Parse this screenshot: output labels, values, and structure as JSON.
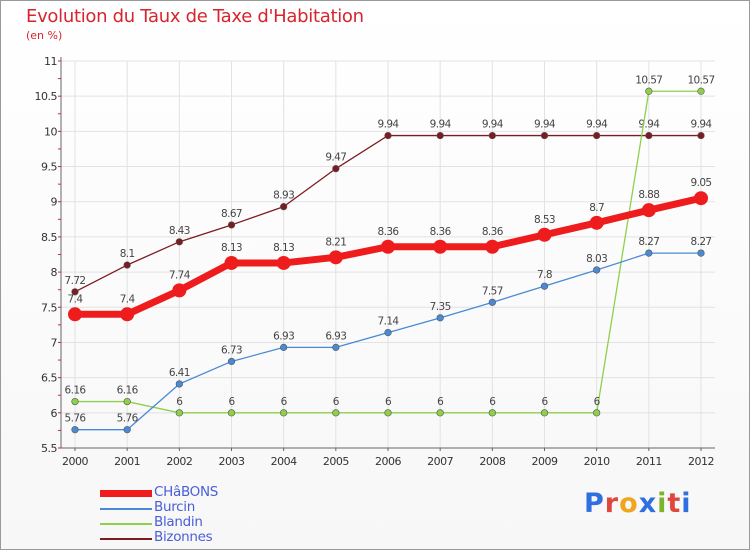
{
  "header": {
    "title": "Evolution du Taux de Taxe d'Habitation",
    "unit": "(en %)"
  },
  "brand": {
    "letters": [
      "P",
      "r",
      "o",
      "x",
      "i",
      "t",
      "i"
    ],
    "colors": [
      "#2f6fe0",
      "#e1463e",
      "#f0a51c",
      "#2f6fe0",
      "#7ab42c",
      "#e1463e",
      "#2f6fe0"
    ]
  },
  "chart_data": {
    "type": "line",
    "x": [
      "2000",
      "2001",
      "2002",
      "2003",
      "2004",
      "2005",
      "2006",
      "2007",
      "2008",
      "2009",
      "2010",
      "2011",
      "2012"
    ],
    "ylim": [
      5.5,
      11
    ],
    "yticks": [
      "5.5",
      "6",
      "6.5",
      "7",
      "7.5",
      "8",
      "8.5",
      "9",
      "9.5",
      "10",
      "10.5",
      "11"
    ],
    "series": [
      {
        "name": "Bizonnes",
        "color": "#7c1c22",
        "values": [
          7.72,
          8.1,
          8.43,
          8.67,
          8.93,
          9.47,
          9.94,
          9.94,
          9.94,
          9.94,
          9.94,
          9.94,
          9.94
        ],
        "labels": [
          "7.72",
          "8.1",
          "8.43",
          "8.67",
          "8.93",
          "9.47",
          "9.94",
          "9.94",
          "9.94",
          "9.94",
          "9.94",
          "9.94",
          "9.94"
        ]
      },
      {
        "name": "Blandin",
        "color": "#8ed04c",
        "values": [
          6.16,
          6.16,
          6,
          6,
          6,
          6,
          6,
          6,
          6,
          6,
          6,
          10.57,
          10.57
        ],
        "labels": [
          "6.16",
          "6.16",
          "6",
          "6",
          "6",
          "6",
          "6",
          "6",
          "6",
          "6",
          "6",
          "10.57",
          "10.57"
        ]
      },
      {
        "name": "Burcin",
        "color": "#4a8ad4",
        "values": [
          5.76,
          5.76,
          6.41,
          6.73,
          6.93,
          6.93,
          7.14,
          7.35,
          7.57,
          7.8,
          8.03,
          8.27,
          8.27
        ],
        "labels": [
          "5.76",
          "5.76",
          "6.41",
          "6.73",
          "6.93",
          "6.93",
          "7.14",
          "7.35",
          "7.57",
          "7.8",
          "8.03",
          "8.27",
          "8.27"
        ]
      },
      {
        "name": "CHâBONS",
        "color": "#ee1c1c",
        "values": [
          7.4,
          7.4,
          7.74,
          8.13,
          8.13,
          8.21,
          8.36,
          8.36,
          8.36,
          8.53,
          8.7,
          8.88,
          9.05
        ],
        "labels": [
          "7.4",
          "7.4",
          "7.74",
          "8.13",
          "8.13",
          "8.21",
          "8.36",
          "8.36",
          "8.36",
          "8.53",
          "8.7",
          "8.88",
          "9.05"
        ]
      }
    ],
    "legend": [
      "CHâBONS",
      "Burcin",
      "Blandin",
      "Bizonnes"
    ]
  }
}
